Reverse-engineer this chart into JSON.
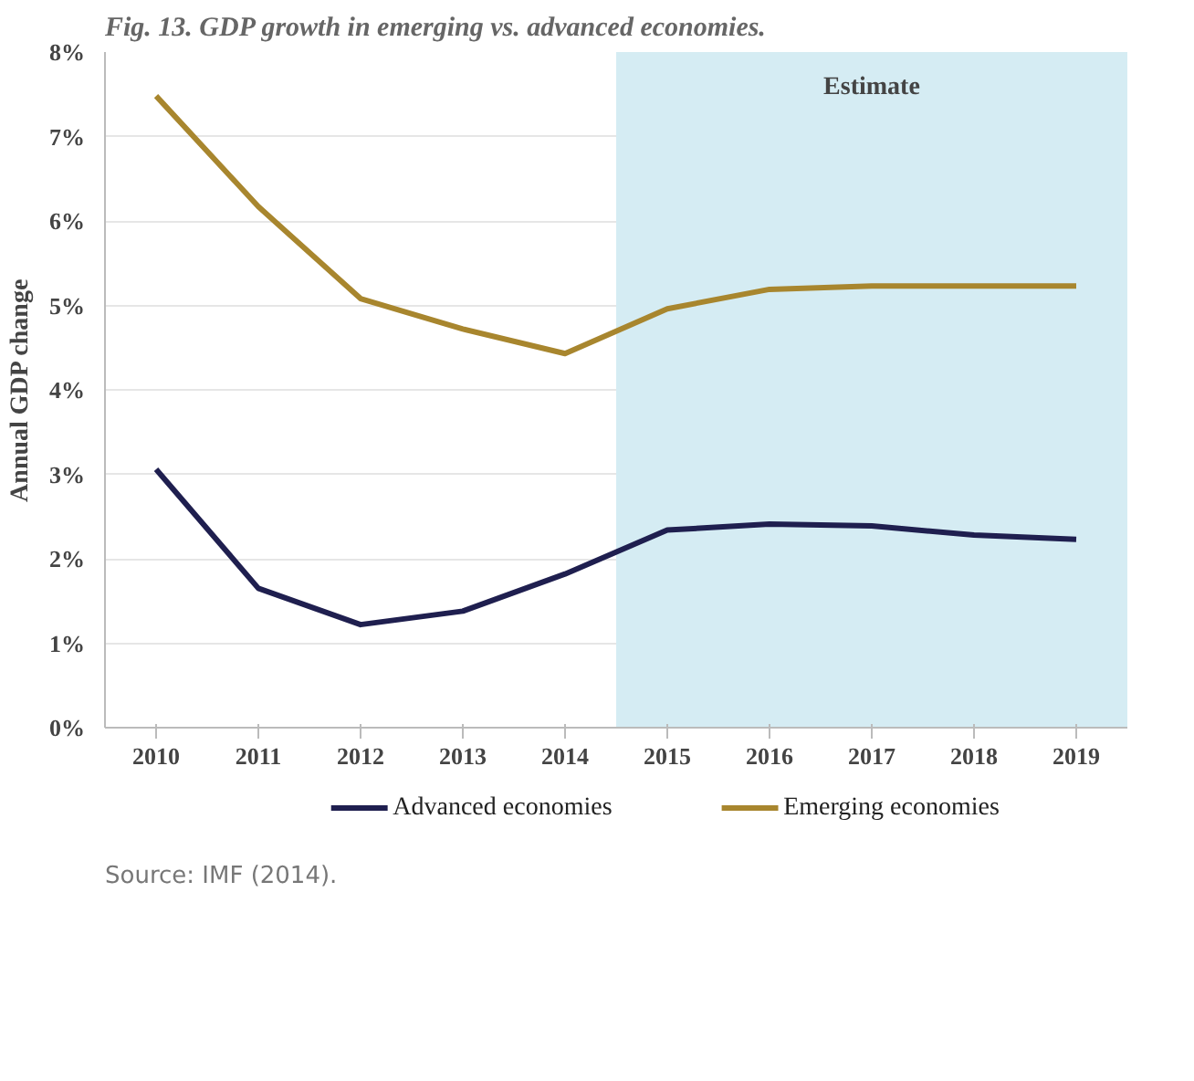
{
  "chart_data": {
    "type": "line",
    "title": "Fig. 13. GDP growth in emerging vs. advanced economies.",
    "ylabel": "Annual GDP change",
    "x": [
      2010,
      2011,
      2012,
      2013,
      2014,
      2015,
      2016,
      2017,
      2018,
      2019
    ],
    "xlim": [
      2009.5,
      2019.5
    ],
    "xticks": [
      2010,
      2011,
      2012,
      2013,
      2014,
      2015,
      2016,
      2017,
      2018,
      2019
    ],
    "ylim": [
      0,
      8
    ],
    "yticks": [
      {
        "value": 0,
        "label": "0%"
      },
      {
        "value": 1,
        "label": "1%"
      },
      {
        "value": 2,
        "label": "2%"
      },
      {
        "value": 3,
        "label": "3%"
      },
      {
        "value": 4,
        "label": "4%"
      },
      {
        "value": 5,
        "label": "5%"
      },
      {
        "value": 6,
        "label": "6%"
      },
      {
        "value": 7,
        "label": "7%"
      },
      {
        "value": 8,
        "label": "8%"
      }
    ],
    "series": [
      {
        "name": "Advanced economies",
        "color": "#1f1f4f",
        "values": [
          3.06,
          1.65,
          1.22,
          1.38,
          1.82,
          2.34,
          2.41,
          2.39,
          2.28,
          2.23
        ]
      },
      {
        "name": "Emerging economies",
        "color": "#a8862e",
        "values": [
          7.48,
          6.17,
          5.08,
          4.72,
          4.43,
          4.96,
          5.19,
          5.23,
          5.23,
          5.23
        ]
      }
    ],
    "bands": [
      {
        "axis": "x",
        "from": 2014.5,
        "to": 2019.5,
        "label": "Estimate",
        "color": "#d5ecf3"
      }
    ],
    "grid": "y",
    "legend": "bottom",
    "line_style": "solid",
    "annotations": [
      "Source: IMF (2014)."
    ]
  }
}
